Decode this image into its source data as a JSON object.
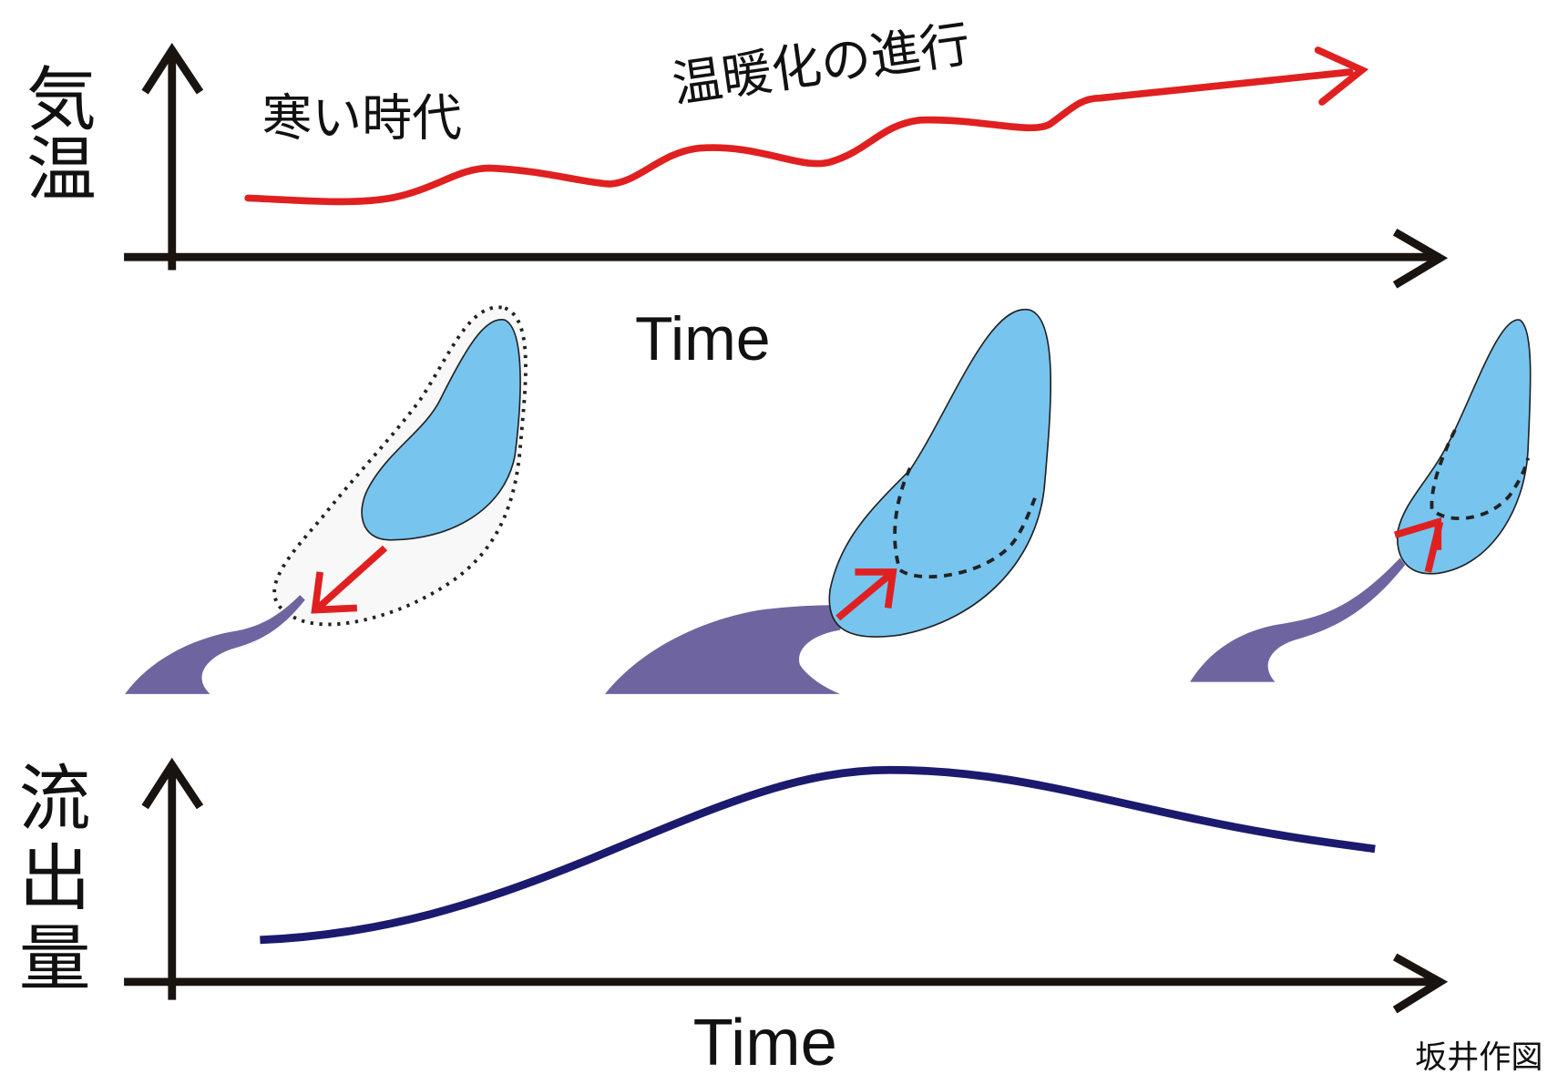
{
  "labels": {
    "temperature_axis": "気温",
    "cold_era": "寒い時代",
    "warming": "温暖化の進行",
    "time_top": "Time",
    "runoff_axis": "流出量",
    "time_bottom": "Time",
    "credit": "坂井作図"
  }
}
